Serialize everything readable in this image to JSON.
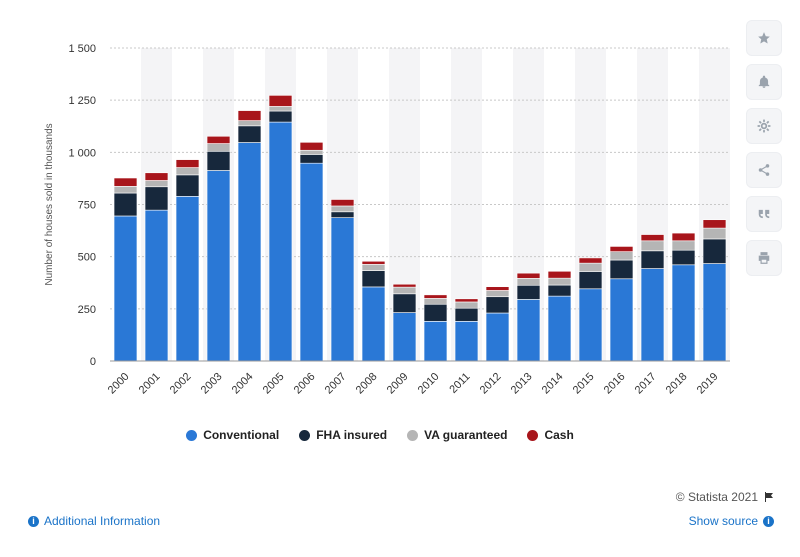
{
  "chart_data": {
    "type": "bar",
    "stacked": true,
    "categories": [
      "2000",
      "2001",
      "2002",
      "2003",
      "2004",
      "2005",
      "2006",
      "2007",
      "2008",
      "2009",
      "2010",
      "2011",
      "2012",
      "2013",
      "2014",
      "2015",
      "2016",
      "2017",
      "2018",
      "2019"
    ],
    "series": [
      {
        "name": "Conventional",
        "color": "#2a78d6",
        "values": [
          695,
          723,
          789,
          913,
          1047,
          1145,
          948,
          687,
          355,
          232,
          190,
          190,
          230,
          295,
          311,
          346,
          394,
          443,
          461,
          467
        ]
      },
      {
        "name": "FHA insured",
        "color": "#17283c",
        "values": [
          110,
          112,
          103,
          92,
          80,
          53,
          42,
          28,
          78,
          90,
          82,
          63,
          78,
          68,
          53,
          83,
          90,
          85,
          70,
          118
        ]
      },
      {
        "name": "VA guaranteed",
        "color": "#b5b5b5",
        "values": [
          32,
          30,
          35,
          37,
          25,
          22,
          20,
          28,
          30,
          32,
          28,
          30,
          30,
          33,
          33,
          40,
          40,
          48,
          45,
          52
        ]
      },
      {
        "name": "Cash",
        "color": "#a8151b",
        "values": [
          40,
          37,
          38,
          35,
          48,
          53,
          38,
          31,
          15,
          14,
          17,
          15,
          18,
          25,
          33,
          25,
          25,
          30,
          37,
          40
        ]
      }
    ],
    "ylabel": "Number of houses sold in thousands",
    "xlabel": "",
    "ylim": [
      0,
      1500
    ],
    "yticks": [
      0,
      250,
      500,
      750,
      1000,
      1250,
      1500
    ],
    "ytick_labels": [
      "0",
      "250",
      "500",
      "750",
      "1 000",
      "1 250",
      "1 500"
    ],
    "grid": true,
    "legend_position": "bottom"
  },
  "legend": {
    "items": [
      {
        "label": "Conventional",
        "color": "#2a78d6"
      },
      {
        "label": "FHA insured",
        "color": "#17283c"
      },
      {
        "label": "VA guaranteed",
        "color": "#b5b5b5"
      },
      {
        "label": "Cash",
        "color": "#a8151b"
      }
    ]
  },
  "footer": {
    "credit": "© Statista 2021",
    "additional_info": "Additional Information",
    "show_source": "Show source"
  },
  "toolbar": {
    "icons": [
      "star-icon",
      "bell-icon",
      "gear-icon",
      "share-icon",
      "quote-icon",
      "print-icon"
    ]
  }
}
